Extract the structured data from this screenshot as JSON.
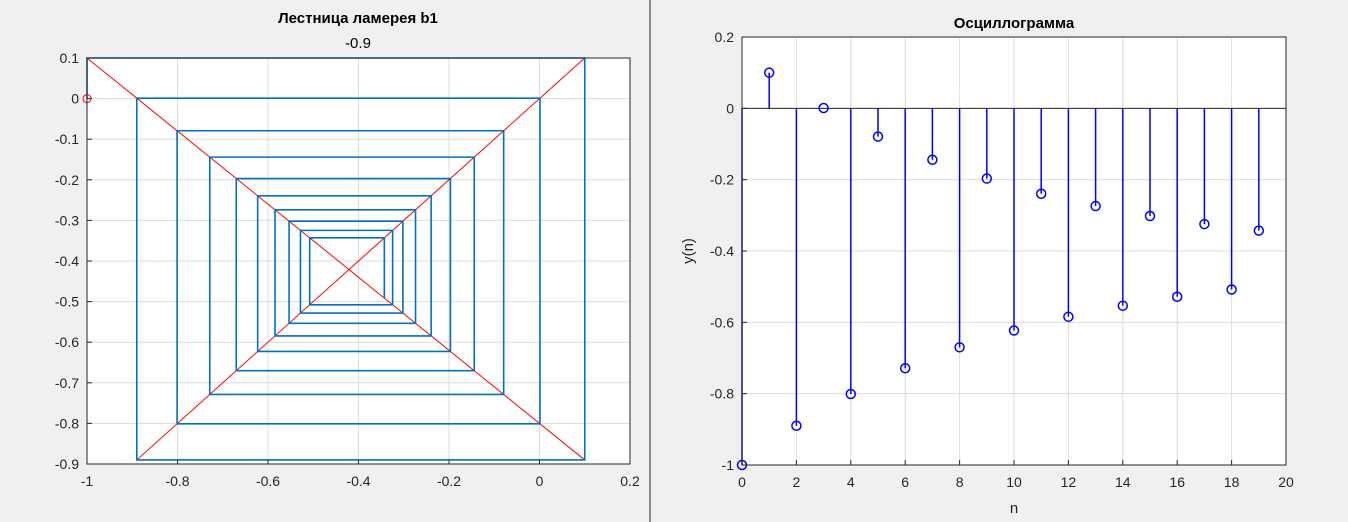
{
  "chart_data": [
    {
      "type": "line",
      "title": "Лестница ламерея b1",
      "subtitle": "-0.9",
      "xlabel": "",
      "ylabel": "",
      "xlim": [
        -1,
        0.2
      ],
      "ylim": [
        -0.9,
        0.1
      ],
      "xticks": [
        -1,
        -0.8,
        -0.6,
        -0.4,
        -0.2,
        0,
        0.2
      ],
      "xtick_labels": [
        "-1",
        "-0.8",
        "-0.6",
        "-0.4",
        "-0.2",
        "0",
        "0.2"
      ],
      "yticks": [
        0.1,
        0,
        -0.1,
        -0.2,
        -0.3,
        -0.4,
        -0.5,
        -0.6,
        -0.7,
        -0.8,
        -0.9
      ],
      "ytick_labels": [
        "0.1",
        "0",
        "-0.1",
        "-0.2",
        "-0.3",
        "-0.4",
        "-0.5",
        "-0.6",
        "-0.7",
        "-0.8",
        "-0.9"
      ],
      "grid": true,
      "start_point": {
        "x": -1,
        "y": 0
      },
      "series": [
        {
          "role": "cobweb staircase",
          "color": "#0072BD",
          "x": [
            -1,
            -1,
            0.1,
            0.1,
            -0.89,
            -0.89,
            0.001,
            0.001,
            -0.8009,
            -0.8009,
            -0.07919,
            -0.07919,
            -0.728729,
            -0.728729,
            -0.144165,
            -0.144165,
            -0.670148,
            -0.670148,
            -0.196867,
            -0.196867,
            -0.62282,
            -0.62282,
            -0.239462,
            -0.239462,
            -0.584484,
            -0.584484,
            -0.273964,
            -0.273964,
            -0.553432,
            -0.553432,
            -0.301911,
            -0.301911,
            -0.52828,
            -0.52828,
            -0.324548,
            -0.324548,
            -0.507907,
            -0.507907,
            -0.342884,
            -0.342884
          ],
          "y": [
            0,
            0.1,
            0.1,
            -0.89,
            -0.89,
            0.001,
            0.001,
            -0.8009,
            -0.8009,
            -0.07919,
            -0.07919,
            -0.728729,
            -0.728729,
            -0.144165,
            -0.144165,
            -0.670148,
            -0.670148,
            -0.196867,
            -0.196867,
            -0.62282,
            -0.62282,
            -0.239462,
            -0.239462,
            -0.584484,
            -0.584484,
            -0.273964,
            -0.273964,
            -0.553432,
            -0.553432,
            -0.301911,
            -0.301911,
            -0.52828,
            -0.52828,
            -0.324548,
            -0.324548,
            -0.507907,
            -0.507907,
            -0.342884,
            -0.342884,
            -0.491605
          ]
        },
        {
          "role": "identity line y=x",
          "color": "#FF0000",
          "x": [
            -0.89,
            0.1
          ],
          "y": [
            -0.89,
            0.1
          ]
        },
        {
          "role": "map line y=-0.9x-0.8",
          "color": "#FF0000",
          "x": [
            -1,
            0.1
          ],
          "y": [
            0.1,
            -0.89
          ]
        }
      ]
    },
    {
      "type": "stem",
      "title": "Осциллограмма",
      "xlabel": "n",
      "ylabel": "y(n)",
      "xlim": [
        0,
        20
      ],
      "ylim": [
        -1,
        0.2
      ],
      "xticks": [
        0,
        2,
        4,
        6,
        8,
        10,
        12,
        14,
        16,
        18,
        20
      ],
      "xtick_labels": [
        "0",
        "2",
        "4",
        "6",
        "8",
        "10",
        "12",
        "14",
        "16",
        "18",
        "20"
      ],
      "yticks": [
        0.2,
        0,
        -0.2,
        -0.4,
        -0.6,
        -0.8,
        -1
      ],
      "ytick_labels": [
        "0.2",
        "0",
        "-0.2",
        "-0.4",
        "-0.6",
        "-0.8",
        "-1"
      ],
      "grid": true,
      "color": "#0000FF",
      "x": [
        0,
        1,
        2,
        3,
        4,
        5,
        6,
        7,
        8,
        9,
        10,
        11,
        12,
        13,
        14,
        15,
        16,
        17,
        18,
        19
      ],
      "y": [
        -1,
        0.1,
        -0.89,
        0.001,
        -0.8009,
        -0.0792,
        -0.7287,
        -0.1442,
        -0.6701,
        -0.1969,
        -0.6228,
        -0.2395,
        -0.5845,
        -0.274,
        -0.5534,
        -0.3019,
        -0.5283,
        -0.3245,
        -0.5079,
        -0.3429
      ]
    }
  ]
}
